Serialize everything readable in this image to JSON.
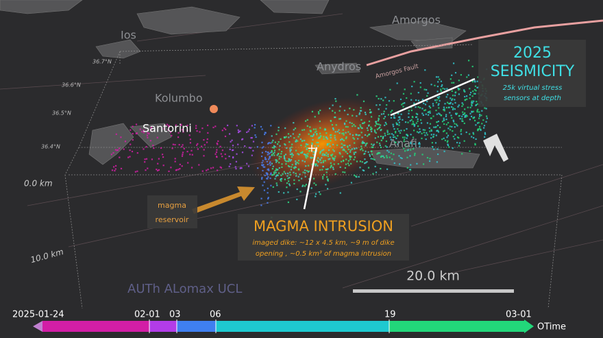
{
  "places": [
    "Ios",
    "Amorgos",
    "Anydros",
    "Kolumbo",
    "Santorini",
    "Anafi"
  ],
  "fault_label": "Amorgos Fault",
  "latitudes": [
    "36.7°N",
    "36.6°N",
    "36.5°N",
    "36.4°N"
  ],
  "depths": [
    "0.0 km",
    "10.0 km"
  ],
  "seismicity": {
    "title_line1": "2025",
    "title_line2": "SEISMICITY",
    "note_line1": "25k virtual stress",
    "note_line2": "sensors at depth"
  },
  "reservoir": {
    "line1": "magma",
    "line2": "reservoir"
  },
  "intrusion": {
    "title": "MAGMA INTRUSION",
    "note_line1": "imaged dike: ~12 x 4.5 km, ~9 m of  dike",
    "note_line2": "opening , ~0.5 km³ of magma intrusion"
  },
  "credits": "AUTh ALomax UCL",
  "scale_bar": "20.0 km",
  "timeline": [
    "2025-01-24",
    "02-01",
    "03",
    "06",
    "19",
    "03-01"
  ],
  "timeline_axis": "OTime"
}
